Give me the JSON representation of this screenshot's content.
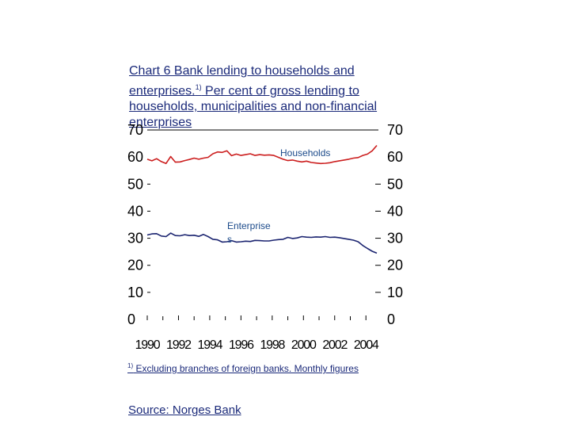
{
  "chart_data": {
    "type": "line",
    "title_main": "Chart 6 Bank lending to households and enterprises.",
    "title_sup": "1)",
    "title_rest": " Per cent of gross lending to households, municipalities and non-financial enterprises",
    "x_tick_labels": [
      "1990",
      "1992",
      "1994",
      "1996",
      "1998",
      "2000",
      "2002",
      "2004"
    ],
    "y_ticks": [
      0,
      10,
      20,
      30,
      40,
      50,
      60,
      70
    ],
    "ylim": [
      0,
      70
    ],
    "xlim": [
      1990,
      2004.8
    ],
    "series": [
      {
        "name": "Households",
        "label": "Households",
        "color": "#cc1f1f",
        "x": [
          1990.0,
          1990.3,
          1990.6,
          1990.9,
          1991.2,
          1991.5,
          1991.8,
          1992.1,
          1992.4,
          1992.7,
          1993.0,
          1993.3,
          1993.6,
          1993.9,
          1994.2,
          1994.5,
          1994.8,
          1995.1,
          1995.4,
          1995.7,
          1996.0,
          1996.3,
          1996.6,
          1996.9,
          1997.2,
          1997.5,
          1997.8,
          1998.1,
          1998.4,
          1998.7,
          1999.0,
          1999.3,
          1999.6,
          1999.9,
          2000.2,
          2000.5,
          2000.8,
          2001.1,
          2001.4,
          2001.7,
          2002.0,
          2002.3,
          2002.6,
          2002.9,
          2003.2,
          2003.5,
          2003.8,
          2004.1,
          2004.4,
          2004.7
        ],
        "values": [
          59.2,
          58.6,
          59.4,
          58.3,
          57.6,
          60.2,
          58.1,
          58.2,
          58.7,
          59.1,
          59.6,
          59.2,
          59.6,
          59.9,
          61.2,
          61.9,
          61.7,
          62.3,
          60.5,
          61.1,
          60.6,
          60.9,
          61.2,
          60.6,
          60.9,
          60.7,
          60.8,
          60.6,
          59.9,
          59.2,
          58.7,
          58.9,
          58.5,
          58.2,
          58.5,
          58.0,
          57.8,
          57.6,
          57.7,
          57.9,
          58.3,
          58.6,
          58.9,
          59.2,
          59.6,
          59.8,
          60.6,
          61.1,
          62.3,
          64.3
        ]
      },
      {
        "name": "Enterprises",
        "label": "Enterprise s",
        "color": "#1b2470",
        "x": [
          1990.0,
          1990.3,
          1990.6,
          1990.9,
          1991.2,
          1991.5,
          1991.8,
          1992.1,
          1992.4,
          1992.7,
          1993.0,
          1993.3,
          1993.6,
          1993.9,
          1994.2,
          1994.5,
          1994.8,
          1995.1,
          1995.4,
          1995.7,
          1996.0,
          1996.3,
          1996.6,
          1996.9,
          1997.2,
          1997.5,
          1997.8,
          1998.1,
          1998.4,
          1998.7,
          1999.0,
          1999.3,
          1999.6,
          1999.9,
          2000.2,
          2000.5,
          2000.8,
          2001.1,
          2001.4,
          2001.7,
          2002.0,
          2002.3,
          2002.6,
          2002.9,
          2003.2,
          2003.5,
          2003.8,
          2004.1,
          2004.4,
          2004.7
        ],
        "values": [
          31.2,
          31.6,
          31.7,
          30.8,
          30.6,
          31.9,
          31.0,
          30.9,
          31.3,
          31.0,
          31.1,
          30.7,
          31.4,
          30.6,
          29.6,
          29.4,
          28.6,
          28.7,
          29.1,
          28.6,
          28.7,
          28.9,
          28.8,
          29.2,
          29.1,
          29.0,
          29.0,
          29.3,
          29.5,
          29.6,
          30.3,
          29.9,
          30.1,
          30.6,
          30.4,
          30.3,
          30.5,
          30.4,
          30.6,
          30.3,
          30.4,
          30.2,
          29.9,
          29.6,
          29.3,
          28.7,
          27.3,
          26.2,
          25.2,
          24.5
        ]
      }
    ]
  },
  "footnote": {
    "sup": "1)",
    "text": " Excluding branches of  foreign banks. Monthly figures"
  },
  "source": "Source: Norges Bank"
}
